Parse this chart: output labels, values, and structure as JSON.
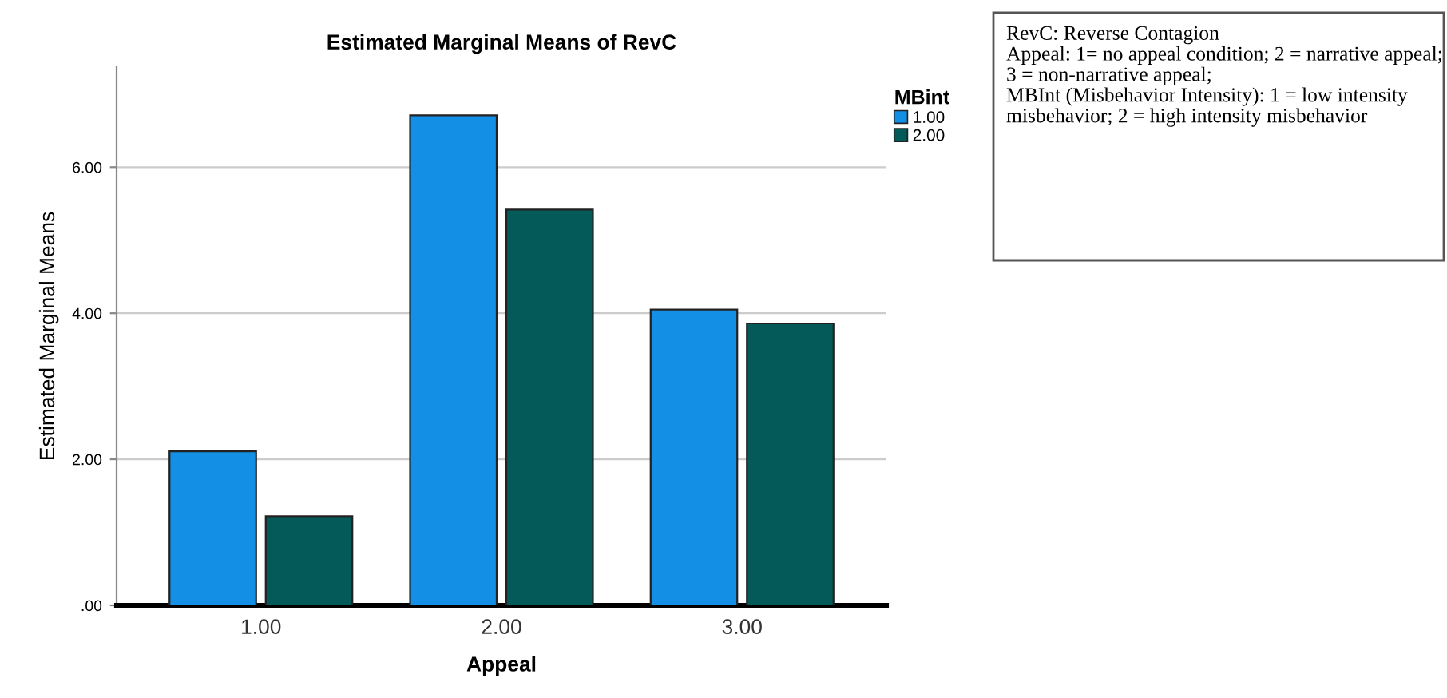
{
  "chart_data": {
    "type": "bar",
    "title": "Estimated Marginal Means of RevC",
    "xlabel": "Appeal",
    "ylabel": "Estimated Marginal Means",
    "legend_title": "MBint",
    "categories": [
      "1.00",
      "2.00",
      "3.00"
    ],
    "series": [
      {
        "name": "1.00",
        "color": "#148fe6",
        "values": [
          2.11,
          6.71,
          4.05
        ]
      },
      {
        "name": "2.00",
        "color": "#035a58",
        "values": [
          1.22,
          5.42,
          3.86
        ]
      }
    ],
    "ylim": [
      0,
      7.37
    ],
    "yticks": [
      {
        "value": 0,
        "label": ".00"
      },
      {
        "value": 2,
        "label": "2.00"
      },
      {
        "value": 4,
        "label": "4.00"
      },
      {
        "value": 6,
        "label": "6.00"
      }
    ],
    "grid": "y",
    "legend": "top right",
    "annotations": [
      "RevC: Reverse Contagion",
      "Appeal: 1= no appeal condition; 2 = narrative appeal; 3 = non-narrative appeal;",
      "MBInt (Misbehavior Intensity): 1 = low intensity misbehavior; 2 = high intensity misbehavior"
    ]
  }
}
